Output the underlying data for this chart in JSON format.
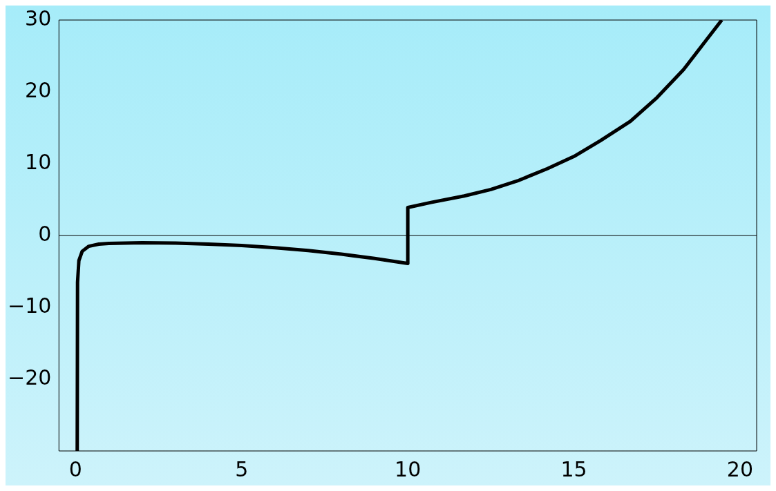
{
  "chart_data": {
    "type": "line",
    "x": [
      0.05,
      0.06,
      0.1,
      0.2,
      0.4,
      0.7,
      1,
      2,
      3,
      4,
      5,
      6,
      7,
      8,
      9,
      10,
      10,
      10.7,
      11.7,
      12.5,
      13.3,
      14.2,
      15,
      15.8,
      16.7,
      17.5,
      18.3,
      19,
      19.45
    ],
    "values": [
      -30,
      -6.5,
      -3.5,
      -2.2,
      -1.5,
      -1.2,
      -1.1,
      -1.0,
      -1.05,
      -1.2,
      -1.4,
      -1.7,
      -2.1,
      -2.6,
      -3.2,
      -3.9,
      3.9,
      4.6,
      5.5,
      6.4,
      7.6,
      9.3,
      11.0,
      13.2,
      15.9,
      19.2,
      23.1,
      27.3,
      30
    ],
    "color": "#000000",
    "marker": "none",
    "line_style": "solid",
    "xlim": [
      -0.5,
      20.5
    ],
    "xticks": [
      0,
      5,
      10,
      15,
      20
    ],
    "ylim": [
      -30,
      30
    ],
    "yticks": [
      -20,
      -10,
      0,
      10,
      20,
      30
    ],
    "ref_lines": [
      {
        "axis": "y",
        "value": 0,
        "color": "#000000"
      }
    ]
  }
}
